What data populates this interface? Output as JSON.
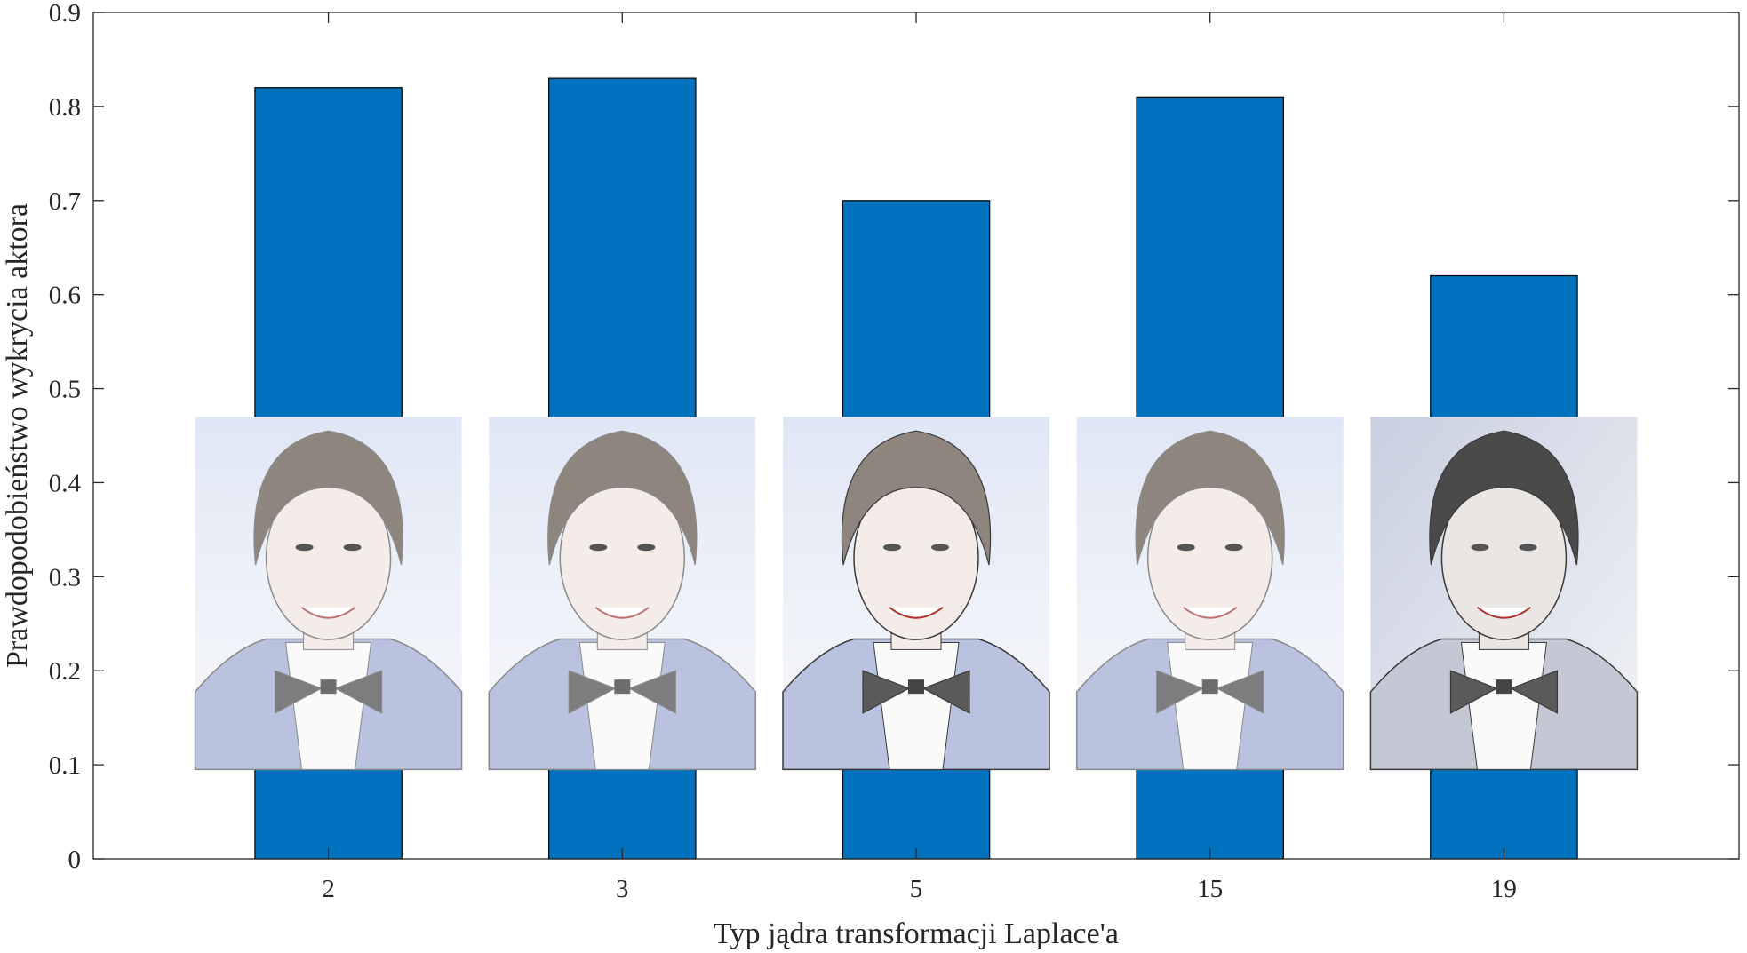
{
  "chart_data": {
    "type": "bar",
    "categories": [
      "2",
      "3",
      "5",
      "15",
      "19"
    ],
    "values": [
      0.82,
      0.83,
      0.7,
      0.81,
      0.62
    ],
    "title": "",
    "xlabel": "Typ jądra transformacji Laplace'a",
    "ylabel": "Prawdopodobieństwo wykrycia aktora",
    "ylim": [
      0,
      0.9
    ],
    "yticks": [
      "0",
      "0.1",
      "0.2",
      "0.3",
      "0.4",
      "0.5",
      "0.6",
      "0.7",
      "0.8",
      "0.9"
    ],
    "grid": false,
    "legend": "none",
    "bar_color": "#0072BD",
    "overlay_images": {
      "description_names": [
        "portrait-kernel-2",
        "portrait-kernel-3",
        "portrait-kernel-5",
        "portrait-kernel-15",
        "portrait-kernel-19"
      ],
      "y_range": [
        0.095,
        0.47
      ]
    }
  }
}
